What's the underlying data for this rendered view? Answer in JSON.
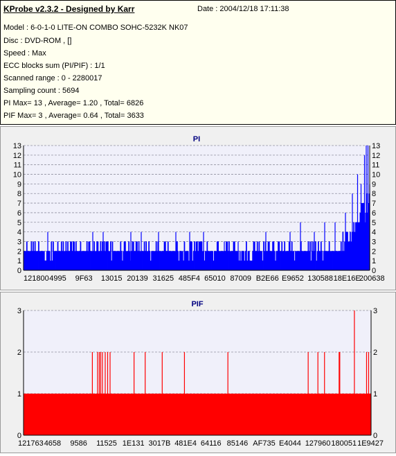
{
  "header": {
    "title": "KProbe v2.3.2 - Designed by Karr",
    "date": "Date : 2004/12/18 17:11:38",
    "lines": [
      "Model : 6-0-1-0 LITE-ON COMBO SOHC-5232K NK07",
      "Disc : DVD-ROM ,  []",
      "Speed : Max",
      "ECC blocks sum (PI/PIF) : 1/1",
      "Scanned range : 0 - 2280017",
      "Sampling count : 5694",
      "PI Max= 13 , Average= 1.20 , Total= 6826",
      "PIF Max= 3 , Average= 0.64 , Total= 3633"
    ]
  },
  "colors": {
    "pi": "#0000ff",
    "pif": "#ff0000",
    "plot_bg": "#f0f0fa",
    "grid": "#9090a0"
  },
  "chart_data": [
    {
      "type": "bar",
      "title": "PI",
      "ylim": [
        0,
        13
      ],
      "yticks": [
        0,
        1,
        2,
        3,
        4,
        5,
        6,
        7,
        8,
        9,
        10,
        11,
        12,
        13
      ],
      "xtick_labels": [
        "121800",
        "4995",
        "9F63",
        "13015",
        "20139",
        "31625",
        "485F4",
        "65010",
        "87009",
        "B2E66",
        "E9652",
        "130588",
        "18E16E",
        "200638"
      ],
      "xlim": [
        0,
        2280017
      ],
      "samples": 380,
      "baseline_profile": [
        [
          0,
          2
        ],
        [
          0.8,
          2
        ],
        [
          0.9,
          2
        ],
        [
          0.93,
          3
        ],
        [
          0.96,
          4
        ],
        [
          0.975,
          6
        ],
        [
          1.0,
          7
        ]
      ],
      "spikes": [
        [
          0.07,
          4
        ],
        [
          0.2,
          4
        ],
        [
          0.23,
          4
        ],
        [
          0.31,
          4
        ],
        [
          0.34,
          4
        ],
        [
          0.39,
          4
        ],
        [
          0.44,
          4
        ],
        [
          0.48,
          4
        ],
        [
          0.52,
          4
        ],
        [
          0.58,
          3
        ],
        [
          0.62,
          3
        ],
        [
          0.7,
          4
        ],
        [
          0.77,
          4
        ],
        [
          0.8,
          5
        ],
        [
          0.84,
          4
        ],
        [
          0.87,
          5
        ],
        [
          0.9,
          5
        ],
        [
          0.93,
          6
        ],
        [
          0.95,
          8
        ],
        [
          0.965,
          10
        ],
        [
          0.975,
          9
        ],
        [
          0.985,
          12
        ],
        [
          0.99,
          13
        ],
        [
          0.995,
          13
        ],
        [
          1.0,
          9
        ]
      ]
    },
    {
      "type": "bar",
      "title": "PIF",
      "ylim": [
        0,
        3
      ],
      "yticks": [
        0,
        1,
        2,
        3
      ],
      "xtick_labels": [
        "121763",
        "4658",
        "9586",
        "11525",
        "1E131",
        "3017B",
        "481E4",
        "64116",
        "85146",
        "AF735",
        "E4044",
        "127960",
        "180051",
        "1E9427"
      ],
      "xlim": [
        0,
        2280017
      ],
      "baseline": 1,
      "spikes": [
        [
          0.198,
          2
        ],
        [
          0.213,
          2
        ],
        [
          0.218,
          2
        ],
        [
          0.222,
          2
        ],
        [
          0.227,
          2
        ],
        [
          0.235,
          2
        ],
        [
          0.242,
          2
        ],
        [
          0.249,
          2
        ],
        [
          0.318,
          2
        ],
        [
          0.35,
          2
        ],
        [
          0.399,
          2
        ],
        [
          0.463,
          2
        ],
        [
          0.588,
          2
        ],
        [
          0.819,
          2
        ],
        [
          0.847,
          2
        ],
        [
          0.866,
          2
        ],
        [
          0.908,
          2
        ],
        [
          0.91,
          2
        ],
        [
          0.952,
          3
        ],
        [
          0.987,
          2
        ],
        [
          0.993,
          2
        ]
      ]
    }
  ]
}
